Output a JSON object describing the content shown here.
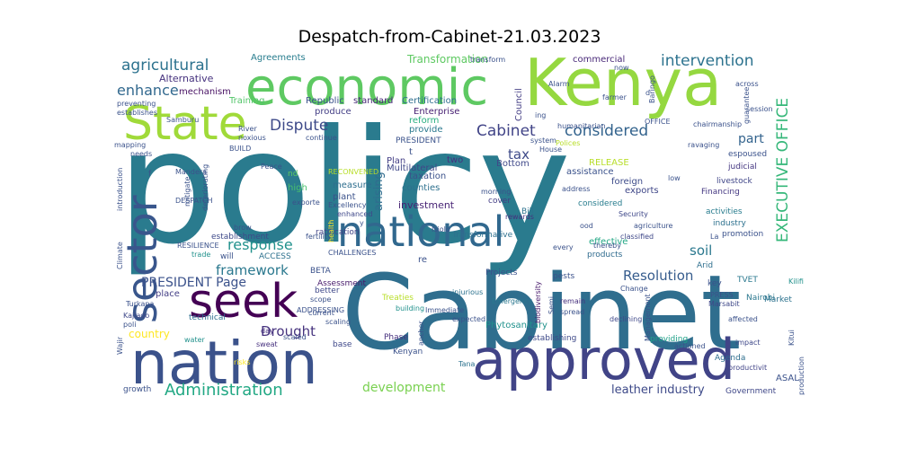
{
  "title": "Despatch-from-Cabinet-21.03.2023",
  "words": [
    {
      "text": "policy",
      "color": "#2a7b8e"
    },
    {
      "text": "Cabinet",
      "color": "#2f6e8e"
    },
    {
      "text": "Kenya",
      "color": "#95d840"
    },
    {
      "text": "economic",
      "color": "#5ec962"
    },
    {
      "text": "State",
      "color": "#a0da39"
    },
    {
      "text": "nation",
      "color": "#3b528b"
    },
    {
      "text": "approved",
      "color": "#414487"
    },
    {
      "text": "national",
      "color": "#31688e"
    },
    {
      "text": "sector",
      "color": "#39568c"
    },
    {
      "text": "seek",
      "color": "#440154"
    },
    {
      "text": "EXECUTIVE OFFICE",
      "color": "#35b779"
    },
    {
      "text": "agricultural",
      "color": "#2c728e"
    },
    {
      "text": "intervention",
      "color": "#2c728e"
    },
    {
      "text": "enhance",
      "color": "#31688e"
    },
    {
      "text": "Dispute",
      "color": "#3e4a89"
    },
    {
      "text": "Cabinet",
      "color": "#414487"
    },
    {
      "text": "considered",
      "color": "#33638d"
    },
    {
      "text": "Administration",
      "color": "#22a884"
    },
    {
      "text": "response",
      "color": "#21918c"
    },
    {
      "text": "framework",
      "color": "#2a788e"
    },
    {
      "text": "PRESIDENT Page",
      "color": "#3b528b"
    },
    {
      "text": "Resolution",
      "color": "#365c8d"
    },
    {
      "text": "Drought",
      "color": "#46337e"
    },
    {
      "text": "development",
      "color": "#7ad151"
    },
    {
      "text": "leather industry",
      "color": "#3e4a89"
    },
    {
      "text": "Transformation",
      "color": "#5ec962"
    },
    {
      "text": "tax",
      "color": "#3e4a89"
    },
    {
      "text": "soil",
      "color": "#2a788e"
    },
    {
      "text": "part",
      "color": "#33638d"
    },
    {
      "text": "arising",
      "color": "#2f6c8e"
    },
    {
      "text": "country",
      "color": "#fde725"
    },
    {
      "text": "Agreements",
      "color": "#287d8e"
    },
    {
      "text": "Alternative",
      "color": "#46327e"
    },
    {
      "text": "mechanism",
      "color": "#471063"
    },
    {
      "text": "Training",
      "color": "#52c569"
    },
    {
      "text": "Republic",
      "color": "#3b528b"
    },
    {
      "text": "produce",
      "color": "#433e85"
    },
    {
      "text": "standard",
      "color": "#482878"
    },
    {
      "text": "Certification",
      "color": "#2e6e8e"
    },
    {
      "text": "Enterprise",
      "color": "#482173"
    },
    {
      "text": "reform",
      "color": "#29af7f"
    },
    {
      "text": "provide",
      "color": "#2a788e"
    },
    {
      "text": "Council",
      "color": "#433d84"
    },
    {
      "text": "commercial",
      "color": "#482878"
    },
    {
      "text": "PRESIDENT",
      "color": "#3b528b"
    },
    {
      "text": "two",
      "color": "#46307e"
    },
    {
      "text": "Plan",
      "color": "#433e85"
    },
    {
      "text": "taxation",
      "color": "#3b528b"
    },
    {
      "text": "Multilateral",
      "color": "#3f4788"
    },
    {
      "text": "Bottom",
      "color": "#3f4889"
    },
    {
      "text": "RELEASE",
      "color": "#b8de29"
    },
    {
      "text": "assistance",
      "color": "#3b528b"
    },
    {
      "text": "foreign",
      "color": "#3e4c8a"
    },
    {
      "text": "exports",
      "color": "#3f4788"
    },
    {
      "text": "counties",
      "color": "#2d708e"
    },
    {
      "text": "investment",
      "color": "#482475"
    },
    {
      "text": "measure",
      "color": "#2e6e8e"
    },
    {
      "text": "plant",
      "color": "#3b528b"
    },
    {
      "text": "high",
      "color": "#4ac16d"
    },
    {
      "text": "nd",
      "color": "#5ec962"
    },
    {
      "text": "cover",
      "color": "#433e85"
    },
    {
      "text": "Bill",
      "color": "#2c728e"
    },
    {
      "text": "considered",
      "color": "#287d8e"
    },
    {
      "text": "espoused",
      "color": "#3b528b"
    },
    {
      "text": "judicial",
      "color": "#453781"
    },
    {
      "text": "livestock",
      "color": "#404688"
    },
    {
      "text": "Financing",
      "color": "#453882"
    },
    {
      "text": "activities",
      "color": "#287c8e"
    },
    {
      "text": "industry",
      "color": "#2d718e"
    },
    {
      "text": "promotion",
      "color": "#3b528b"
    },
    {
      "text": "effective",
      "color": "#22a785"
    },
    {
      "text": "products",
      "color": "#2f6b8e"
    },
    {
      "text": "Arid",
      "color": "#2e6f8e"
    },
    {
      "text": "key",
      "color": "#3b528b"
    },
    {
      "text": "TVET",
      "color": "#2a788e"
    },
    {
      "text": "Nairobi",
      "color": "#2a778e"
    },
    {
      "text": "Market",
      "color": "#2c728e"
    },
    {
      "text": "establishment",
      "color": "#3e4989"
    },
    {
      "text": "will",
      "color": "#3b528b"
    },
    {
      "text": "ratification",
      "color": "#414487"
    },
    {
      "text": "Transformative",
      "color": "#2d708e"
    },
    {
      "text": "ACCESS",
      "color": "#2d718e"
    },
    {
      "text": "BETA",
      "color": "#3b528b"
    },
    {
      "text": "Assessment",
      "color": "#481a6c"
    },
    {
      "text": "place",
      "color": "#433e85"
    },
    {
      "text": "technical",
      "color": "#2e6f8e"
    },
    {
      "text": "better",
      "color": "#3f4889"
    },
    {
      "text": "Projects",
      "color": "#3b528b"
    },
    {
      "text": "pests",
      "color": "#3b528b"
    },
    {
      "text": "Phytosanitary",
      "color": "#21918c"
    },
    {
      "text": "establishing",
      "color": "#3e4989"
    },
    {
      "text": "providing",
      "color": "#1fa188"
    },
    {
      "text": "Phase",
      "color": "#46307e"
    },
    {
      "text": "Kenyan",
      "color": "#3b528b"
    },
    {
      "text": "base",
      "color": "#3f4889"
    },
    {
      "text": "Treaties",
      "color": "#b8de29"
    },
    {
      "text": "Agenda",
      "color": "#2e6e8e"
    },
    {
      "text": "ASAL",
      "color": "#3b528b"
    },
    {
      "text": "Government",
      "color": "#3f4788"
    },
    {
      "text": "growth",
      "color": "#3b528b"
    },
    {
      "text": "Emergency",
      "color": "#2a778e"
    },
    {
      "text": "Immediate",
      "color": "#3b528b"
    },
    {
      "text": "injurious",
      "color": "#2c728e"
    },
    {
      "text": "building",
      "color": "#21918c"
    },
    {
      "text": "anchor",
      "color": "#3b528b"
    },
    {
      "text": "Tana",
      "color": "#2c728e"
    },
    {
      "text": "expected",
      "color": "#3b528b"
    },
    {
      "text": "remain",
      "color": "#46307e"
    },
    {
      "text": "spread",
      "color": "#3b528b"
    },
    {
      "text": "declining",
      "color": "#3f4889"
    },
    {
      "text": "biodiversity",
      "color": "#481a6c"
    },
    {
      "text": "affected",
      "color": "#3b528b"
    },
    {
      "text": "impact",
      "color": "#3f4889"
    },
    {
      "text": "productivit",
      "color": "#414487"
    },
    {
      "text": "Turkana",
      "color": "#3b528b"
    },
    {
      "text": "Kajiado",
      "color": "#3f4889"
    },
    {
      "text": "poli",
      "color": "#3b528b"
    },
    {
      "text": "Wajir",
      "color": "#3b528b"
    },
    {
      "text": "water",
      "color": "#21918c"
    },
    {
      "text": "day",
      "color": "#46307e"
    },
    {
      "text": "risks",
      "color": "#fde725"
    },
    {
      "text": "scaling",
      "color": "#3b528b"
    },
    {
      "text": "current",
      "color": "#3b528b"
    },
    {
      "text": "sweat",
      "color": "#46307e"
    },
    {
      "text": "scaled",
      "color": "#3b528b"
    },
    {
      "text": "Mandera",
      "color": "#3b528b"
    },
    {
      "text": "exporte",
      "color": "#3b528b"
    },
    {
      "text": "Excellency",
      "color": "#3b528b"
    },
    {
      "text": "enhanced",
      "color": "#3f4889"
    },
    {
      "text": "Isiolo",
      "color": "#3b528b"
    },
    {
      "text": "morning",
      "color": "#3b528b"
    },
    {
      "text": "rewards",
      "color": "#46307e"
    },
    {
      "text": "address",
      "color": "#3b528b"
    },
    {
      "text": "Security",
      "color": "#3f4889"
    },
    {
      "text": "agriculture",
      "color": "#3b528b"
    },
    {
      "text": "classified",
      "color": "#3f4889"
    },
    {
      "text": "every",
      "color": "#3b528b"
    },
    {
      "text": "Change",
      "color": "#3b528b"
    },
    {
      "text": "PRESS",
      "color": "#3b528b"
    },
    {
      "text": "Marsabit",
      "color": "#3f4889"
    },
    {
      "text": "Kitui",
      "color": "#3b528b"
    },
    {
      "text": "Kilifi",
      "color": "#21918c"
    },
    {
      "text": "low",
      "color": "#3b528b"
    },
    {
      "text": "Peace",
      "color": "#3b528b"
    },
    {
      "text": "RECONVENED",
      "color": "#b8de29"
    },
    {
      "text": "CHALLENGES",
      "color": "#3b528b"
    },
    {
      "text": "DESPATCH",
      "color": "#3b528b"
    },
    {
      "text": "RESILIENCE",
      "color": "#3b528b"
    },
    {
      "text": "trade",
      "color": "#21918c"
    },
    {
      "text": "brow",
      "color": "#3b528b"
    },
    {
      "text": "introduction",
      "color": "#3b528b"
    },
    {
      "text": "Climate",
      "color": "#3b528b"
    },
    {
      "text": "mapping",
      "color": "#3b528b"
    },
    {
      "text": "needs",
      "color": "#3b528b"
    },
    {
      "text": "preventing",
      "color": "#3b528b"
    },
    {
      "text": "Samburu",
      "color": "#3b528b"
    },
    {
      "text": "establishes",
      "color": "#3b528b"
    },
    {
      "text": "River",
      "color": "#3b528b"
    },
    {
      "text": "noxious",
      "color": "#3b528b"
    },
    {
      "text": "continue",
      "color": "#3b528b"
    },
    {
      "text": "BUILD",
      "color": "#3b528b"
    },
    {
      "text": "transform",
      "color": "#3b528b"
    },
    {
      "text": "now",
      "color": "#3b528b"
    },
    {
      "text": "Alarm",
      "color": "#3b528b"
    },
    {
      "text": "Baringo",
      "color": "#3b528b"
    },
    {
      "text": "farmer",
      "color": "#3b528b"
    },
    {
      "text": "OFFICE",
      "color": "#3b528b"
    },
    {
      "text": "across",
      "color": "#3b528b"
    },
    {
      "text": "guarantee",
      "color": "#3b528b"
    },
    {
      "text": "session",
      "color": "#3b528b"
    },
    {
      "text": "chairmanship",
      "color": "#3b528b"
    },
    {
      "text": "ravaging",
      "color": "#3b528b"
    },
    {
      "text": "humanitarian",
      "color": "#3b528b"
    },
    {
      "text": "Polices",
      "color": "#b8de29"
    },
    {
      "text": "House",
      "color": "#3b528b"
    },
    {
      "text": "system",
      "color": "#3b528b"
    },
    {
      "text": "La",
      "color": "#3b528b"
    },
    {
      "text": "thereby",
      "color": "#3b528b"
    },
    {
      "text": "ADDRESSING",
      "color": "#3b528b"
    },
    {
      "text": "fertility",
      "color": "#3b528b"
    },
    {
      "text": "productivity",
      "color": "#3b528b"
    },
    {
      "text": "mitigate",
      "color": "#3b528b"
    },
    {
      "text": "deteriorating",
      "color": "#3b528b"
    },
    {
      "text": "Management",
      "color": "#3b528b"
    },
    {
      "text": "production",
      "color": "#3b528b"
    },
    {
      "text": "Semi",
      "color": "#3b528b"
    },
    {
      "text": "actioned",
      "color": "#3b528b"
    },
    {
      "text": "scope",
      "color": "#3b528b"
    },
    {
      "text": "health",
      "color": "#fde725"
    },
    {
      "text": "re",
      "color": "#3b528b"
    },
    {
      "text": "t",
      "color": "#3b528b"
    },
    {
      "text": "ood",
      "color": "#3b528b"
    },
    {
      "text": "d",
      "color": "#3b528b"
    },
    {
      "text": "ing",
      "color": "#3b528b"
    },
    {
      "text": "f",
      "color": "#3b528b"
    },
    {
      "text": "y",
      "color": "#3b528b"
    }
  ]
}
